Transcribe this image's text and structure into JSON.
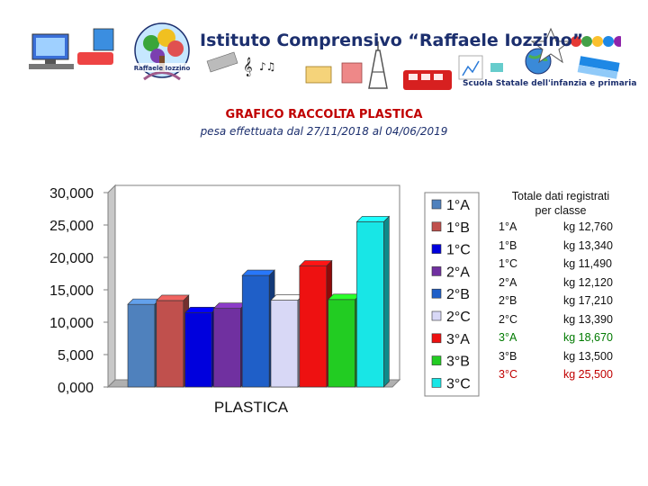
{
  "header": {
    "school_name": "Istituto Comprensivo “Raffaele Iozzino”",
    "school_subtitle": "Scuola Statale dell'infanzia e primaria",
    "logo_text": "Raffaele Iozzino"
  },
  "title": "GRAFICO RACCOLTA PLASTICA",
  "subtitle": "pesa effettuata dal 27/11/2018 al 04/06/2019",
  "chart_data": {
    "type": "bar",
    "xlabel": "PLASTICA",
    "ylabel": "",
    "ylim": [
      0,
      30
    ],
    "yticks": [
      "0,000",
      "5,000",
      "10,000",
      "15,000",
      "20,000",
      "25,000",
      "30,000"
    ],
    "categories": [
      "PLASTICA"
    ],
    "grid": false,
    "legend_position": "right",
    "series": [
      {
        "name": "1°A",
        "values": [
          12.76
        ],
        "color": "#4f81bd"
      },
      {
        "name": "1°B",
        "values": [
          13.34
        ],
        "color": "#c0504d"
      },
      {
        "name": "1°C",
        "values": [
          11.49
        ],
        "color": "#0000dd"
      },
      {
        "name": "2°A",
        "values": [
          12.12
        ],
        "color": "#7030a0"
      },
      {
        "name": "2°B",
        "values": [
          17.21
        ],
        "color": "#1f5fc8"
      },
      {
        "name": "2°C",
        "values": [
          13.39
        ],
        "color": "#d8d8f6"
      },
      {
        "name": "3°A",
        "values": [
          18.67
        ],
        "color": "#ee1111"
      },
      {
        "name": "3°B",
        "values": [
          13.5
        ],
        "color": "#22cc22"
      },
      {
        "name": "3°C",
        "values": [
          25.5
        ],
        "color": "#18e6e6"
      }
    ]
  },
  "totals": {
    "title_line1": "Totale dati registrati",
    "title_line2": "per classe",
    "rows": [
      {
        "class": "1°A",
        "value": "kg 12,760",
        "color": "#111111"
      },
      {
        "class": "1°B",
        "value": "kg 13,340",
        "color": "#111111"
      },
      {
        "class": "1°C",
        "value": "kg 11,490",
        "color": "#111111"
      },
      {
        "class": "2°A",
        "value": "kg 12,120",
        "color": "#111111"
      },
      {
        "class": "2°B",
        "value": "kg 17,210",
        "color": "#111111"
      },
      {
        "class": "2°C",
        "value": "kg 13,390",
        "color": "#111111"
      },
      {
        "class": "3°A",
        "value": "kg 18,670",
        "color": "#007a00"
      },
      {
        "class": "3°B",
        "value": "kg 13,500",
        "color": "#111111"
      },
      {
        "class": "3°C",
        "value": "kg 25,500",
        "color": "#c00000"
      }
    ]
  }
}
